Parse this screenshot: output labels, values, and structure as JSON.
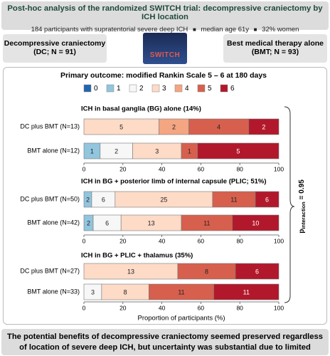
{
  "header": {
    "title": "Post-hoc analysis of the randomized SWITCH trial: decompressive craniectomy by ICH location",
    "facts": [
      "184 participants with supratentorial severe deep ICH",
      "median age 61y",
      "32% women"
    ]
  },
  "arms": {
    "left": {
      "name": "Decompressive craniectomy",
      "detail": "(DC; N = 91)"
    },
    "right": {
      "name": "Best medical therapy alone",
      "detail": "(BMT; N = 93)"
    }
  },
  "logo": {
    "text": "SWITCH"
  },
  "chart_data": {
    "type": "stacked-bar-horizontal",
    "title": "Primary outcome: modified Rankin Scale 5 – 6 at 180 days",
    "categories": [
      "0",
      "1",
      "2",
      "3",
      "4",
      "5",
      "6"
    ],
    "colors": [
      "#2166ac",
      "#92c5de",
      "#f7f7f7",
      "#fddbc7",
      "#f4a582",
      "#d6604d",
      "#b2182b"
    ],
    "panels": [
      {
        "title": "ICH in basal ganglia (BG) alone (14%)",
        "rows": [
          {
            "label": "DC plus BMT (N=13)",
            "values": [
              0,
              0,
              0,
              5,
              2,
              4,
              2
            ]
          },
          {
            "label": "BMT alone (N=12)",
            "values": [
              0,
              1,
              2,
              3,
              0,
              1,
              5
            ]
          }
        ]
      },
      {
        "title": "ICH in BG + posterior limb of internal capsule (PLIC; 51%)",
        "rows": [
          {
            "label": "DC plus BMT (N=50)",
            "values": [
              0,
              2,
              6,
              25,
              0,
              11,
              6
            ]
          },
          {
            "label": "BMT alone (N=42)",
            "values": [
              0,
              2,
              6,
              13,
              0,
              11,
              10
            ]
          }
        ]
      },
      {
        "title": "ICH in BG + PLIC + thalamus (35%)",
        "rows": [
          {
            "label": "DC plus BMT (N=27)",
            "values": [
              0,
              0,
              0,
              13,
              0,
              8,
              6
            ]
          },
          {
            "label": "BMT alone (N=33)",
            "values": [
              0,
              0,
              3,
              8,
              0,
              11,
              11
            ]
          }
        ]
      }
    ],
    "xlim": [
      0,
      100
    ],
    "xticks": [
      0,
      20,
      40,
      60,
      80,
      100
    ],
    "xlabel": "Proportion of participants (%)",
    "annotation": {
      "symbol": "p",
      "subscript": "interaction",
      "text": "= 0.95"
    }
  },
  "footer": {
    "text": "The potential benefits of decompressive craniectomy seemed preserved regardless of location of severe deep ICH, but uncertainty was substantial due to limited power."
  }
}
